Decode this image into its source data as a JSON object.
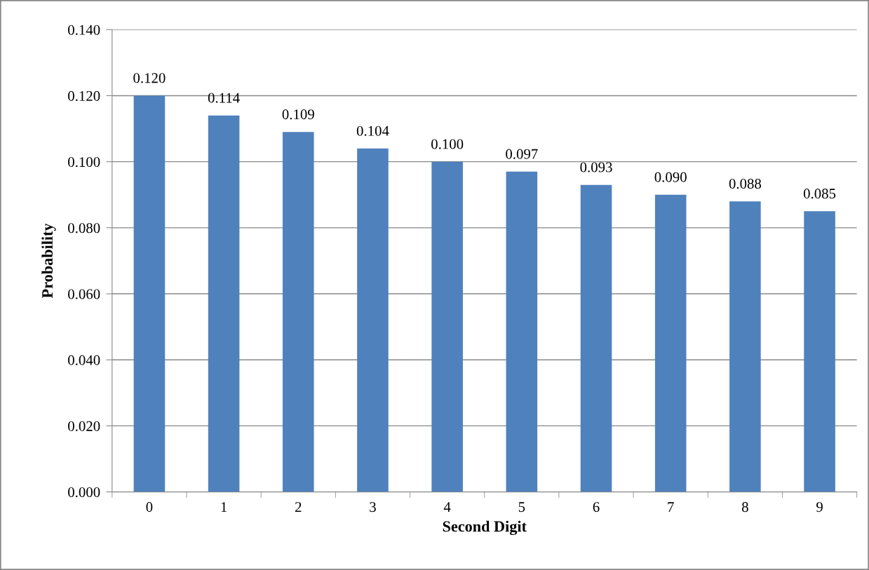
{
  "chart_data": {
    "type": "bar",
    "xlabel": "Second Digit",
    "ylabel": "Probability",
    "categories": [
      "0",
      "1",
      "2",
      "3",
      "4",
      "5",
      "6",
      "7",
      "8",
      "9"
    ],
    "values": [
      0.12,
      0.114,
      0.109,
      0.104,
      0.1,
      0.097,
      0.093,
      0.09,
      0.088,
      0.085
    ],
    "value_labels": [
      "0.120",
      "0.114",
      "0.109",
      "0.104",
      "0.100",
      "0.097",
      "0.093",
      "0.090",
      "0.088",
      "0.085"
    ],
    "color": "#4f81bd",
    "data_labels": true,
    "grid": "y",
    "legend": false,
    "ylim": [
      0,
      0.14
    ],
    "yticks": [
      {
        "value": 0,
        "label": "0.000"
      },
      {
        "value": 0.02,
        "label": "0.020"
      },
      {
        "value": 0.04,
        "label": "0.040"
      },
      {
        "value": 0.06,
        "label": "0.060"
      },
      {
        "value": 0.08,
        "label": "0.080"
      },
      {
        "value": 0.1,
        "label": "0.100"
      },
      {
        "value": 0.12,
        "label": "0.120"
      },
      {
        "value": 0.14,
        "label": "0.140"
      }
    ]
  }
}
